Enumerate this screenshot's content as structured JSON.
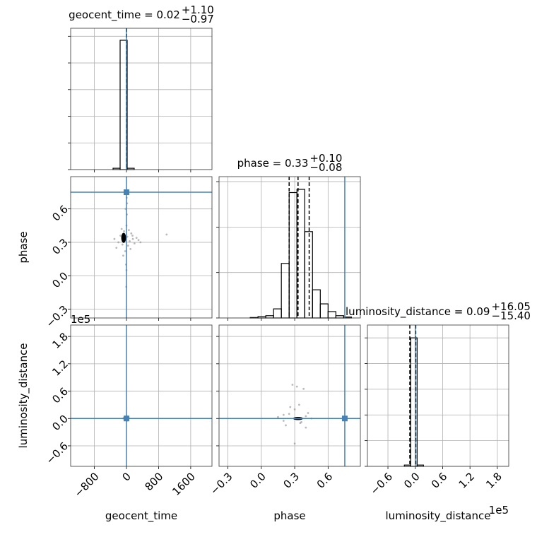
{
  "chart_data": {
    "type": "corner",
    "grid": true,
    "color": "#000000",
    "point_color": "#8c8c8c",
    "truth_color": "#4682b4",
    "parameters": [
      {
        "name": "geocent_time",
        "lim": [
          -1390,
          2130
        ],
        "ticks": [
          {
            "value": -800,
            "label": "−800"
          },
          0,
          800,
          1600
        ],
        "truth": 0
      },
      {
        "name": "phase",
        "lim": [
          -0.38,
          0.89
        ],
        "ticks": [
          {
            "value": -0.3,
            "label": "−0.3"
          },
          {
            "value": 0,
            "label": "0.0"
          },
          0.3,
          0.6
        ],
        "truth": 0.75
      },
      {
        "name": "luminosity_distance",
        "lim": [
          -1.05,
          2.05
        ],
        "offset": "1e5",
        "ticks": [
          {
            "value": -0.6,
            "label": "−0.6"
          },
          {
            "value": 0,
            "label": "0.0"
          },
          0.6,
          1.2,
          1.8
        ],
        "truth": 0
      }
    ],
    "histograms": [
      {
        "title": "geocent_time = 0.02",
        "upper": "+1.10",
        "lower": "−0.97",
        "bins": [
          -334,
          -158,
          18,
          193
        ],
        "counts": [
          0.01,
          0.97,
          0.01
        ],
        "ylim": [
          0,
          1.06
        ],
        "yticks": [
          0,
          0.2,
          0.4,
          0.6,
          0.8,
          1.0
        ],
        "quantiles": [
          -0.95,
          0.02,
          1.12
        ]
      },
      {
        "title": "phase = 0.33",
        "upper": "+0.10",
        "lower": "−0.08",
        "bins": [
          -0.1,
          -0.03,
          0.04,
          0.11,
          0.18,
          0.25,
          0.32,
          0.39,
          0.46,
          0.53,
          0.6,
          0.67,
          0.74,
          0.81
        ],
        "counts": [
          0.01,
          0.03,
          0.05,
          0.2,
          1.2,
          2.76,
          2.83,
          1.9,
          0.62,
          0.31,
          0.14,
          0.05,
          0.02
        ],
        "ylim": [
          0,
          3.11
        ],
        "yticks": [
          0,
          1,
          2,
          3
        ],
        "quantiles": [
          0.25,
          0.33,
          0.43
        ]
      },
      {
        "title": "luminosity_distance = 0.09",
        "upper": "+16.05",
        "lower": "−15.40",
        "bins": [
          -0.24,
          -0.1,
          0.04,
          0.18
        ],
        "counts": [
          0.01,
          1.0,
          0.01
        ],
        "ylim": [
          0,
          1.1
        ],
        "yticks": [
          0,
          0.2,
          0.4,
          0.6,
          0.8,
          1.0
        ],
        "quantiles": [
          -0.12,
          0.0,
          0.01
        ]
      }
    ],
    "scatters": [
      {
        "x": [
          -300,
          -200,
          -150,
          -100,
          -60,
          -30,
          0,
          20,
          40,
          80,
          120,
          160,
          200,
          250,
          300,
          350,
          -250,
          -120,
          60,
          100,
          -80,
          10,
          -20,
          150,
          1000,
          -10,
          5,
          0,
          15,
          -5
        ],
        "y": [
          0.33,
          0.3,
          0.36,
          0.28,
          0.4,
          0.22,
          0.45,
          0.35,
          0.27,
          0.31,
          0.38,
          0.33,
          0.29,
          0.34,
          0.32,
          0.3,
          0.25,
          0.42,
          0.41,
          0.24,
          0.18,
          0.55,
          0.6,
          0.36,
          0.37,
          0.1,
          0.7,
          0.05,
          0.65,
          -0.1
        ],
        "core": {
          "x": -70,
          "y": 0.34,
          "dx": 120,
          "dy": 0.09
        }
      },
      {
        "x": [
          -60,
          -30,
          0,
          20,
          40,
          -20,
          10,
          60,
          -80,
          30
        ],
        "y": [
          0.02,
          -0.03,
          0.05,
          0.0,
          -0.02,
          0.03,
          -0.05,
          0.01,
          0.0,
          0.04
        ],
        "core": {
          "x": -15,
          "y": 0,
          "dx": 60,
          "dy": 0.05
        }
      },
      {
        "x": [
          0.15,
          0.2,
          0.25,
          0.3,
          0.35,
          0.4,
          0.45,
          0.28,
          0.32,
          0.38,
          0.22,
          0.42,
          0.26,
          0.36,
          0.4,
          0.3,
          0.34,
          0.2
        ],
        "y": [
          0.03,
          -0.05,
          0.1,
          0.2,
          -0.1,
          0.05,
          0.0,
          0.74,
          0.7,
          0.65,
          -0.15,
          0.12,
          0.25,
          -0.08,
          -0.2,
          -0.55,
          0.3,
          0.08
        ],
        "core": {
          "x": 0.33,
          "y": 0,
          "dx": 0.09,
          "dy": 0.07
        }
      }
    ]
  }
}
